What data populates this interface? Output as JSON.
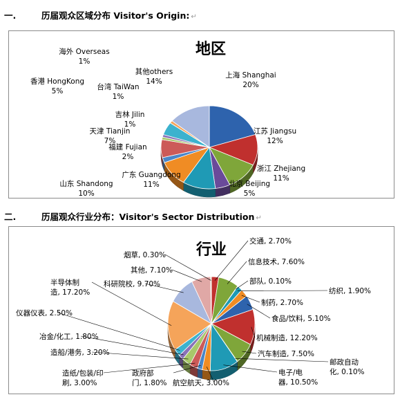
{
  "section1": {
    "number": "一.",
    "title": "历届观众区域分布 Visitor's Origin:",
    "return_mark": "↵"
  },
  "section2": {
    "number": "二.",
    "title": "历届观众行业分布：Visitor's Sector Distribution",
    "return_mark": "↵"
  },
  "chart_data": [
    {
      "type": "pie",
      "title": "地区",
      "slices": [
        {
          "name": "上海 Shanghai",
          "value": 20,
          "label": "20%",
          "color": "#2e63ad"
        },
        {
          "name": "江苏 Jiangsu",
          "value": 12,
          "label": "12%",
          "color": "#c0302e"
        },
        {
          "name": "浙江 Zhejiang",
          "value": 11,
          "label": "11%",
          "color": "#7fa63a"
        },
        {
          "name": "北京 Beijing",
          "value": 5,
          "label": "5%",
          "color": "#6a4a9a"
        },
        {
          "name": "广东 Guangdong",
          "value": 11,
          "label": "11%",
          "color": "#1f9ab5"
        },
        {
          "name": "山东 Shandong",
          "value": 10,
          "label": "10%",
          "color": "#f08c24"
        },
        {
          "name": "福建 Fujian",
          "value": 2,
          "label": "2%",
          "color": "#4a86c8"
        },
        {
          "name": "天津 Tianjin",
          "value": 7,
          "label": "7%",
          "color": "#cc5a58"
        },
        {
          "name": "吉林 Jilin",
          "value": 1,
          "label": "1%",
          "color": "#a8c86a"
        },
        {
          "name": "台湾 TaiWan",
          "value": 1,
          "label": "1%",
          "color": "#8a72b8"
        },
        {
          "name": "香港 HongKong",
          "value": 5,
          "label": "5%",
          "color": "#3cb2ce"
        },
        {
          "name": "海外 Overseas",
          "value": 1,
          "label": "1%",
          "color": "#f5a45a"
        },
        {
          "name": "其他others",
          "value": 14,
          "label": "14%",
          "color": "#a8b8de"
        }
      ]
    },
    {
      "type": "pie",
      "title": "行业",
      "slices": [
        {
          "name": "交通",
          "value": 2.7,
          "label": "交通, 2.70%",
          "color": "#c0302e"
        },
        {
          "name": "信息技术",
          "value": 7.6,
          "label": "信息技术, 7.60%",
          "color": "#7fa63a"
        },
        {
          "name": "部队",
          "value": 0.1,
          "label": "部队, 0.10%",
          "color": "#6a4a9a"
        },
        {
          "name": "纺织",
          "value": 1.9,
          "label": "纺织, 1.90%",
          "color": "#1f9ab5"
        },
        {
          "name": "制药",
          "value": 2.7,
          "label": "制药, 2.70%",
          "color": "#f08c24"
        },
        {
          "name": "食品/饮料",
          "value": 5.1,
          "label": "食品/饮料, 5.10%",
          "color": "#2e63ad"
        },
        {
          "name": "机械制造",
          "value": 12.2,
          "label": "机械制造, 12.20%",
          "color": "#c0302e"
        },
        {
          "name": "汽车制造",
          "value": 7.5,
          "label": "汽车制造, 7.50%",
          "color": "#7fa63a"
        },
        {
          "name": "邮政自动化",
          "value": 0.1,
          "label": "邮政自动化, 0.10%",
          "color": "#6a4a9a"
        },
        {
          "name": "电子/电器",
          "value": 10.5,
          "label": "电子/电器, 10.50%",
          "color": "#1f9ab5"
        },
        {
          "name": "航空航天",
          "value": 3.0,
          "label": "航空航天, 3.00%",
          "color": "#f08c24"
        },
        {
          "name": "政府部门",
          "value": 1.8,
          "label": "政府部门, 1.80%",
          "color": "#4a86c8"
        },
        {
          "name": "造纸/包装/印刷",
          "value": 3.0,
          "label": "造纸/包装/印刷, 3.00%",
          "color": "#cc5a58"
        },
        {
          "name": "造船/港务",
          "value": 3.2,
          "label": "造船/港务, 3.20%",
          "color": "#a8c86a"
        },
        {
          "name": "冶金/化工",
          "value": 1.8,
          "label": "冶金/化工, 1.80%",
          "color": "#8a72b8"
        },
        {
          "name": "仪器仪表",
          "value": 2.5,
          "label": "仪器仪表, 2.50%",
          "color": "#3cb2ce"
        },
        {
          "name": "半导体制造",
          "value": 17.2,
          "label": "半导体制造, 17.20%",
          "color": "#f5a45a"
        },
        {
          "name": "科研院校",
          "value": 9.7,
          "label": "科研院校, 9.70%",
          "color": "#a8b8de"
        },
        {
          "name": "其他",
          "value": 7.1,
          "label": "其他, 7.10%",
          "color": "#e0a8a6"
        },
        {
          "name": "烟草",
          "value": 0.3,
          "label": "烟草, 0.30%",
          "color": "#c8dca8"
        }
      ]
    }
  ]
}
